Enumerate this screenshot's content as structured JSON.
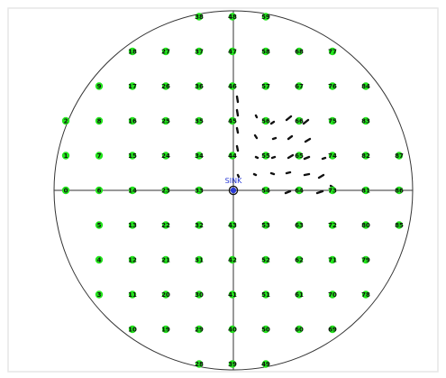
{
  "sink": {
    "label": "SINK"
  },
  "nodes": [
    {
      "id": "0",
      "col": 0,
      "row": 0
    },
    {
      "id": "1",
      "col": 0,
      "row": 1
    },
    {
      "id": "2",
      "col": 0,
      "row": 2
    },
    {
      "id": "3",
      "col": 1,
      "row": -3
    },
    {
      "id": "4",
      "col": 1,
      "row": -2
    },
    {
      "id": "5",
      "col": 1,
      "row": -1
    },
    {
      "id": "6",
      "col": 1,
      "row": 0
    },
    {
      "id": "7",
      "col": 1,
      "row": 1
    },
    {
      "id": "8",
      "col": 1,
      "row": 2
    },
    {
      "id": "9",
      "col": 1,
      "row": 3
    },
    {
      "id": "10",
      "col": 2,
      "row": -4
    },
    {
      "id": "11",
      "col": 2,
      "row": -3
    },
    {
      "id": "12",
      "col": 2,
      "row": -2
    },
    {
      "id": "13",
      "col": 2,
      "row": -1
    },
    {
      "id": "14",
      "col": 2,
      "row": 0
    },
    {
      "id": "15",
      "col": 2,
      "row": 1
    },
    {
      "id": "16",
      "col": 2,
      "row": 2
    },
    {
      "id": "17",
      "col": 2,
      "row": 3
    },
    {
      "id": "18",
      "col": 2,
      "row": 4
    },
    {
      "id": "19",
      "col": 3,
      "row": -4
    },
    {
      "id": "20",
      "col": 3,
      "row": -3
    },
    {
      "id": "21",
      "col": 3,
      "row": -2
    },
    {
      "id": "22",
      "col": 3,
      "row": -1
    },
    {
      "id": "23",
      "col": 3,
      "row": 0
    },
    {
      "id": "24",
      "col": 3,
      "row": 1
    },
    {
      "id": "25",
      "col": 3,
      "row": 2
    },
    {
      "id": "26",
      "col": 3,
      "row": 3
    },
    {
      "id": "27",
      "col": 3,
      "row": 4
    },
    {
      "id": "28",
      "col": 4,
      "row": -5
    },
    {
      "id": "29",
      "col": 4,
      "row": -4
    },
    {
      "id": "30",
      "col": 4,
      "row": -3
    },
    {
      "id": "31",
      "col": 4,
      "row": -2
    },
    {
      "id": "32",
      "col": 4,
      "row": -1
    },
    {
      "id": "33",
      "col": 4,
      "row": 0
    },
    {
      "id": "34",
      "col": 4,
      "row": 1
    },
    {
      "id": "35",
      "col": 4,
      "row": 2
    },
    {
      "id": "36",
      "col": 4,
      "row": 3
    },
    {
      "id": "37",
      "col": 4,
      "row": 4
    },
    {
      "id": "38",
      "col": 4,
      "row": 5
    },
    {
      "id": "39",
      "col": 5,
      "row": -5
    },
    {
      "id": "40",
      "col": 5,
      "row": -4
    },
    {
      "id": "41",
      "col": 5,
      "row": -3
    },
    {
      "id": "42",
      "col": 5,
      "row": -2
    },
    {
      "id": "43",
      "col": 5,
      "row": -1
    },
    {
      "id": "44",
      "col": 5,
      "row": 1
    },
    {
      "id": "45",
      "col": 5,
      "row": 2
    },
    {
      "id": "46",
      "col": 5,
      "row": 3
    },
    {
      "id": "47",
      "col": 5,
      "row": 4
    },
    {
      "id": "48",
      "col": 5,
      "row": 5
    },
    {
      "id": "49",
      "col": 6,
      "row": -5
    },
    {
      "id": "50",
      "col": 6,
      "row": -4
    },
    {
      "id": "51",
      "col": 6,
      "row": -3
    },
    {
      "id": "52",
      "col": 6,
      "row": -2
    },
    {
      "id": "53",
      "col": 6,
      "row": -1
    },
    {
      "id": "54",
      "col": 6,
      "row": 0
    },
    {
      "id": "55",
      "col": 6,
      "row": 1
    },
    {
      "id": "56",
      "col": 6,
      "row": 2
    },
    {
      "id": "57",
      "col": 6,
      "row": 3
    },
    {
      "id": "58",
      "col": 6,
      "row": 4
    },
    {
      "id": "59",
      "col": 6,
      "row": 5
    },
    {
      "id": "60",
      "col": 7,
      "row": -4
    },
    {
      "id": "61",
      "col": 7,
      "row": -3
    },
    {
      "id": "62",
      "col": 7,
      "row": -2
    },
    {
      "id": "63",
      "col": 7,
      "row": -1
    },
    {
      "id": "64",
      "col": 7,
      "row": 0
    },
    {
      "id": "65",
      "col": 7,
      "row": 1
    },
    {
      "id": "66",
      "col": 7,
      "row": 2
    },
    {
      "id": "67",
      "col": 7,
      "row": 3
    },
    {
      "id": "68",
      "col": 7,
      "row": 4
    },
    {
      "id": "69",
      "col": 8,
      "row": -4
    },
    {
      "id": "70",
      "col": 8,
      "row": -3
    },
    {
      "id": "71",
      "col": 8,
      "row": -2
    },
    {
      "id": "72",
      "col": 8,
      "row": -1
    },
    {
      "id": "73",
      "col": 8,
      "row": 0
    },
    {
      "id": "74",
      "col": 8,
      "row": 1
    },
    {
      "id": "75",
      "col": 8,
      "row": 2
    },
    {
      "id": "76",
      "col": 8,
      "row": 3
    },
    {
      "id": "77",
      "col": 8,
      "row": 4
    },
    {
      "id": "78",
      "col": 9,
      "row": -3
    },
    {
      "id": "79",
      "col": 9,
      "row": -2
    },
    {
      "id": "80",
      "col": 9,
      "row": -1
    },
    {
      "id": "81",
      "col": 9,
      "row": 0
    },
    {
      "id": "82",
      "col": 9,
      "row": 1
    },
    {
      "id": "83",
      "col": 9,
      "row": 2
    },
    {
      "id": "84",
      "col": 9,
      "row": 3
    },
    {
      "id": "85",
      "col": 10,
      "row": -1
    },
    {
      "id": "86",
      "col": 10,
      "row": 0
    },
    {
      "id": "87",
      "col": 10,
      "row": 1
    }
  ],
  "colors": {
    "node_fill": "#22e61c",
    "node_text": "#111111",
    "sink_fill": "#2a3bd6",
    "sink_label": "#2a3bd6",
    "lines": "#333333",
    "background": "#ffffff",
    "frame": "#e6e6e6"
  }
}
